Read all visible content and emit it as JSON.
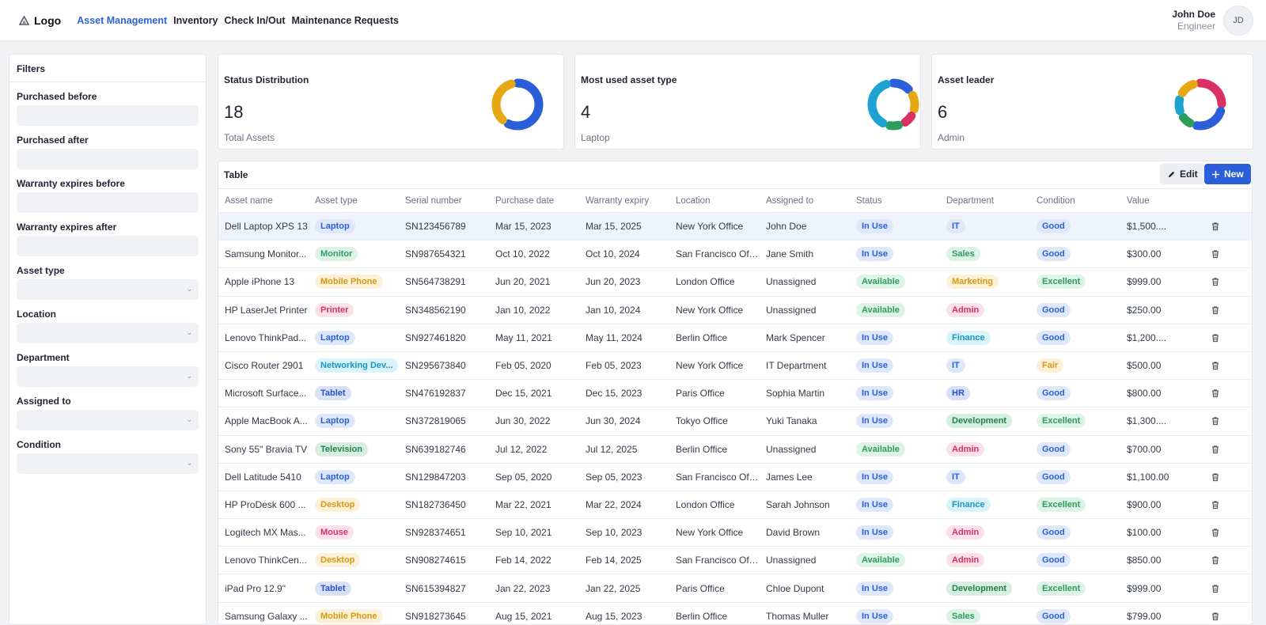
{
  "header": {
    "logo_text": "Logo",
    "nav": [
      {
        "label": "Asset Management",
        "active": true
      },
      {
        "label": "Inventory",
        "active": false
      },
      {
        "label": "Check In/Out",
        "active": false
      },
      {
        "label": "Maintenance Requests",
        "active": false
      }
    ],
    "user": {
      "name": "John Doe",
      "role": "Engineer",
      "initials": "JD"
    }
  },
  "filters": {
    "title": "Filters",
    "fields": [
      {
        "label": "Purchased before",
        "kind": "date",
        "value": ""
      },
      {
        "label": "Purchased after",
        "kind": "date",
        "value": ""
      },
      {
        "label": "Warranty expires before",
        "kind": "date",
        "value": ""
      },
      {
        "label": "Warranty expires after",
        "kind": "date",
        "value": ""
      },
      {
        "label": "Asset type",
        "kind": "select",
        "value": ""
      },
      {
        "label": "Location",
        "kind": "select",
        "value": ""
      },
      {
        "label": "Department",
        "kind": "select",
        "value": ""
      },
      {
        "label": "Assigned to",
        "kind": "select",
        "value": ""
      },
      {
        "label": "Condition",
        "kind": "select",
        "value": ""
      }
    ]
  },
  "cards": [
    {
      "title": "Status Distribution",
      "value": "18",
      "subtitle": "Total Assets",
      "donut": [
        {
          "color": "#2b5fd9",
          "share": 0.62
        },
        {
          "color": "#e5a713",
          "share": 0.38
        }
      ]
    },
    {
      "title": "Most used asset type",
      "value": "4",
      "subtitle": "Laptop",
      "donut": [
        {
          "color": "#2b5fd9",
          "share": 0.18
        },
        {
          "color": "#e5a713",
          "share": 0.16
        },
        {
          "color": "#dc2f62",
          "share": 0.12
        },
        {
          "color": "#2d9d5c",
          "share": 0.12
        },
        {
          "color": "#1da3d1",
          "share": 0.42
        }
      ]
    },
    {
      "title": "Asset leader",
      "value": "6",
      "subtitle": "Admin",
      "donut": [
        {
          "color": "#dc2f62",
          "share": 0.3
        },
        {
          "color": "#2b5fd9",
          "share": 0.28
        },
        {
          "color": "#2d9d5c",
          "share": 0.12
        },
        {
          "color": "#1da3d1",
          "share": 0.14
        },
        {
          "color": "#e5a713",
          "share": 0.16
        }
      ]
    }
  ],
  "table": {
    "title": "Table",
    "edit_label": "Edit",
    "new_label": "New",
    "columns": [
      "Asset name",
      "Asset type",
      "Serial number",
      "Purchase date",
      "Warranty expiry",
      "Location",
      "Assigned to",
      "Status",
      "Department",
      "Condition",
      "Value"
    ],
    "rows": [
      {
        "name": "Dell Laptop XPS 13",
        "type": "Laptop",
        "serial": "SN123456789",
        "purchase": "Mar 15, 2023",
        "warranty": "Mar 15, 2025",
        "location": "New York Office",
        "assigned": "John Doe",
        "status": "In Use",
        "department": "IT",
        "condition": "Good",
        "value": "$1,500....",
        "selected": true
      },
      {
        "name": "Samsung Monitor...",
        "type": "Monitor",
        "serial": "SN987654321",
        "purchase": "Oct 10, 2022",
        "warranty": "Oct 10, 2024",
        "location": "San Francisco Offi...",
        "assigned": "Jane Smith",
        "status": "In Use",
        "department": "Sales",
        "condition": "Good",
        "value": "$300.00"
      },
      {
        "name": "Apple iPhone 13",
        "type": "Mobile Phone",
        "serial": "SN564738291",
        "purchase": "Jun 20, 2021",
        "warranty": "Jun 20, 2023",
        "location": "London Office",
        "assigned": "Unassigned",
        "status": "Available",
        "department": "Marketing",
        "condition": "Excellent",
        "value": "$999.00"
      },
      {
        "name": "HP LaserJet Printer",
        "type": "Printer",
        "serial": "SN348562190",
        "purchase": "Jan 10, 2022",
        "warranty": "Jan 10, 2024",
        "location": "New York Office",
        "assigned": "Unassigned",
        "status": "Available",
        "department": "Admin",
        "condition": "Good",
        "value": "$250.00"
      },
      {
        "name": "Lenovo ThinkPad...",
        "type": "Laptop",
        "serial": "SN927461820",
        "purchase": "May 11, 2021",
        "warranty": "May 11, 2024",
        "location": "Berlin Office",
        "assigned": "Mark Spencer",
        "status": "In Use",
        "department": "Finance",
        "condition": "Good",
        "value": "$1,200...."
      },
      {
        "name": "Cisco Router 2901",
        "type": "Networking Dev...",
        "serial": "SN295673840",
        "purchase": "Feb 05, 2020",
        "warranty": "Feb 05, 2023",
        "location": "New York Office",
        "assigned": "IT Department",
        "status": "In Use",
        "department": "IT",
        "condition": "Fair",
        "value": "$500.00"
      },
      {
        "name": "Microsoft Surface...",
        "type": "Tablet",
        "serial": "SN476192837",
        "purchase": "Dec 15, 2021",
        "warranty": "Dec 15, 2023",
        "location": "Paris Office",
        "assigned": "Sophia Martin",
        "status": "In Use",
        "department": "HR",
        "condition": "Good",
        "value": "$800.00"
      },
      {
        "name": "Apple MacBook A...",
        "type": "Laptop",
        "serial": "SN372819065",
        "purchase": "Jun 30, 2022",
        "warranty": "Jun 30, 2024",
        "location": "Tokyo Office",
        "assigned": "Yuki Tanaka",
        "status": "In Use",
        "department": "Development",
        "condition": "Excellent",
        "value": "$1,300...."
      },
      {
        "name": "Sony 55\" Bravia TV",
        "type": "Television",
        "serial": "SN639182746",
        "purchase": "Jul 12, 2022",
        "warranty": "Jul 12, 2025",
        "location": "Berlin Office",
        "assigned": "Unassigned",
        "status": "Available",
        "department": "Admin",
        "condition": "Good",
        "value": "$700.00"
      },
      {
        "name": "Dell Latitude 5410",
        "type": "Laptop",
        "serial": "SN129847203",
        "purchase": "Sep 05, 2020",
        "warranty": "Sep 05, 2023",
        "location": "San Francisco Offi...",
        "assigned": "James Lee",
        "status": "In Use",
        "department": "IT",
        "condition": "Good",
        "value": "$1,100.00"
      },
      {
        "name": "HP ProDesk 600 ...",
        "type": "Desktop",
        "serial": "SN182736450",
        "purchase": "Mar 22, 2021",
        "warranty": "Mar 22, 2024",
        "location": "London Office",
        "assigned": "Sarah Johnson",
        "status": "In Use",
        "department": "Finance",
        "condition": "Excellent",
        "value": "$900.00"
      },
      {
        "name": "Logitech MX Mas...",
        "type": "Mouse",
        "serial": "SN928374651",
        "purchase": "Sep 10, 2021",
        "warranty": "Sep 10, 2023",
        "location": "New York Office",
        "assigned": "David Brown",
        "status": "In Use",
        "department": "Admin",
        "condition": "Good",
        "value": "$100.00"
      },
      {
        "name": "Lenovo ThinkCen...",
        "type": "Desktop",
        "serial": "SN908274615",
        "purchase": "Feb 14, 2022",
        "warranty": "Feb 14, 2025",
        "location": "San Francisco Offi...",
        "assigned": "Unassigned",
        "status": "Available",
        "department": "Admin",
        "condition": "Good",
        "value": "$850.00"
      },
      {
        "name": "iPad Pro 12.9\"",
        "type": "Tablet",
        "serial": "SN615394827",
        "purchase": "Jan 22, 2023",
        "warranty": "Jan 22, 2025",
        "location": "Paris Office",
        "assigned": "Chloe Dupont",
        "status": "In Use",
        "department": "Development",
        "condition": "Excellent",
        "value": "$999.00"
      },
      {
        "name": "Samsung Galaxy ...",
        "type": "Mobile Phone",
        "serial": "SN918273645",
        "purchase": "Aug 15, 2021",
        "warranty": "Aug 15, 2023",
        "location": "Berlin Office",
        "assigned": "Thomas Muller",
        "status": "In Use",
        "department": "Sales",
        "condition": "Good",
        "value": "$799.00"
      }
    ]
  },
  "badge_colors": {
    "type": {
      "Laptop": "blue",
      "Monitor": "green",
      "Mobile Phone": "yellow",
      "Printer": "pink",
      "Networking Dev...": "cyan",
      "Tablet": "indigo",
      "Television": "dkgreen",
      "Desktop": "yellow",
      "Mouse": "pink"
    },
    "status": {
      "In Use": "blue",
      "Available": "green"
    },
    "department": {
      "IT": "blue",
      "Sales": "green",
      "Marketing": "yellow",
      "Admin": "pink",
      "Finance": "cyan",
      "HR": "indigo",
      "Development": "dkgreen"
    },
    "condition": {
      "Good": "blue",
      "Excellent": "green",
      "Fair": "yellow"
    }
  }
}
